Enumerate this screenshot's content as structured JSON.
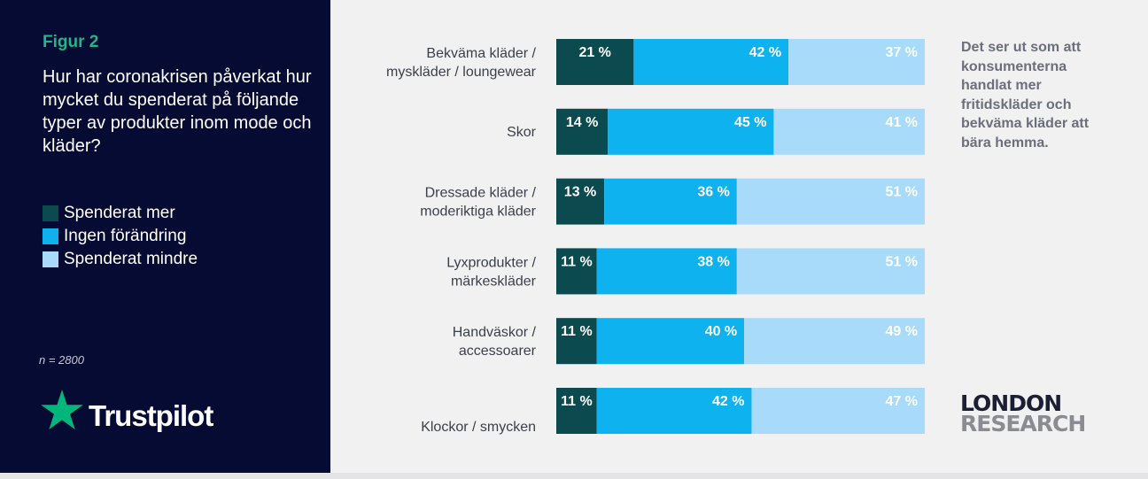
{
  "figure_label": "Figur 2",
  "question": "Hur har coronakrisen påverkat hur mycket du spenderat på följande typer av produkter inom mode och kläder?",
  "legend": [
    {
      "label": "Spenderat mer",
      "color": "#0b4a4e"
    },
    {
      "label": "Ingen förändring",
      "color": "#0db2ee"
    },
    {
      "label": "Spenderat mindre",
      "color": "#a8dbfa"
    }
  ],
  "sample_size": "n = 2800",
  "trustpilot_logo": "Trustpilot",
  "annotation": "Det ser ut som att konsumenterna handlat mer fritidskläder och bekväma kläder att bära hemma.",
  "brand": {
    "line1": "LONDON",
    "line2": "RESEARCH"
  },
  "chart_data": {
    "type": "bar",
    "orientation": "horizontal",
    "stacked": true,
    "title": "Hur har coronakrisen påverkat hur mycket du spenderat på följande typer av produkter inom mode och kläder?",
    "xlabel": "",
    "ylabel": "",
    "xlim": [
      0,
      100
    ],
    "unit": "%",
    "categories": [
      [
        "Bekväma kläder /",
        "myskläder / loungewear"
      ],
      [
        "Skor"
      ],
      [
        "Dressade kläder /",
        "moderiktiga kläder"
      ],
      [
        "Lyxprodukter /",
        "märkeskläder"
      ],
      [
        "Handväskor /",
        "accessoarer"
      ],
      [
        "Klockor / smycken"
      ]
    ],
    "series": [
      {
        "name": "Spenderat mer",
        "color": "#0b4a4e",
        "label_color": "#ffffff",
        "values": [
          21,
          14,
          13,
          11,
          11,
          11
        ]
      },
      {
        "name": "Ingen förändring",
        "color": "#0db2ee",
        "label_color": "#ffffff",
        "values": [
          42,
          45,
          36,
          38,
          40,
          42
        ]
      },
      {
        "name": "Spenderat mindre",
        "color": "#a8dbfa",
        "label_color": "#ffffff",
        "values": [
          37,
          41,
          51,
          51,
          49,
          47
        ]
      }
    ],
    "value_labels": [
      [
        "21 %",
        "42 %",
        "37 %"
      ],
      [
        "14 %",
        "45 %",
        "41 %"
      ],
      [
        "13 %",
        "36 %",
        "51 %"
      ],
      [
        "11 %",
        "38 %",
        "51 %"
      ],
      [
        "11 %",
        "40 %",
        "49 %"
      ],
      [
        "11 %",
        "42 %",
        "47 %"
      ]
    ]
  }
}
